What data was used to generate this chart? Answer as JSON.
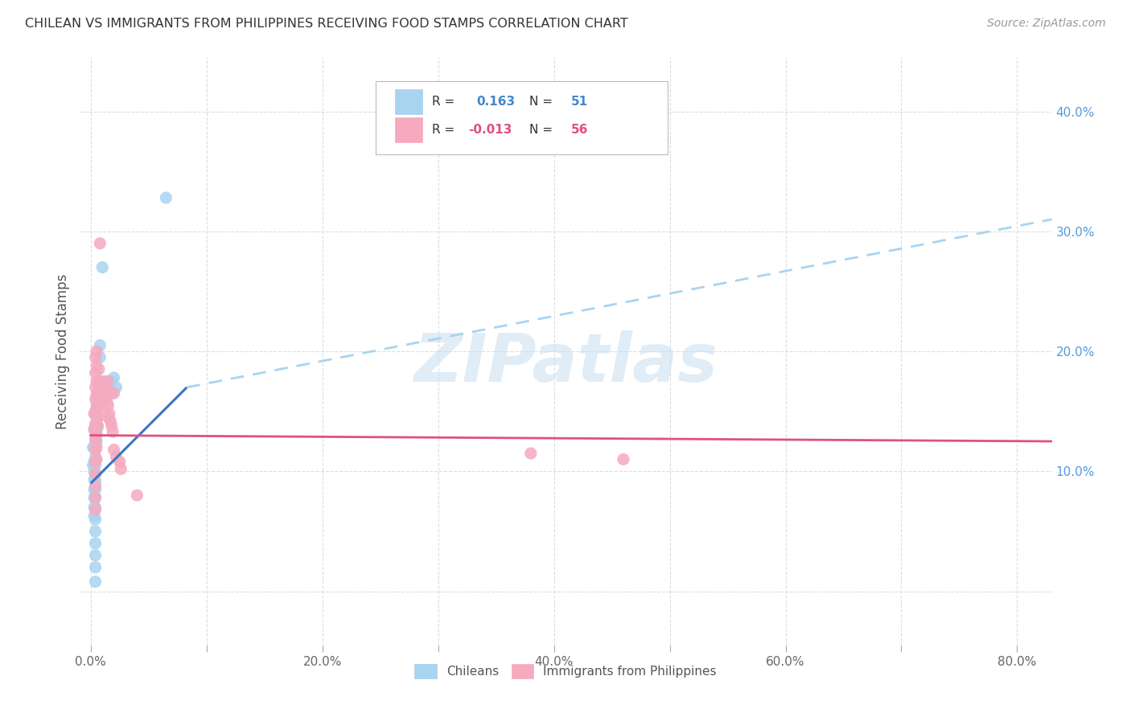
{
  "title": "CHILEAN VS IMMIGRANTS FROM PHILIPPINES RECEIVING FOOD STAMPS CORRELATION CHART",
  "source": "Source: ZipAtlas.com",
  "ylabel": "Receiving Food Stamps",
  "x_tick_positions": [
    0.0,
    0.1,
    0.2,
    0.3,
    0.4,
    0.5,
    0.6,
    0.7,
    0.8
  ],
  "x_tick_labels": [
    "0.0%",
    "",
    "20.0%",
    "",
    "40.0%",
    "",
    "60.0%",
    "",
    "80.0%"
  ],
  "y_tick_positions": [
    0.0,
    0.1,
    0.2,
    0.3,
    0.4
  ],
  "y_tick_labels": [
    "",
    "10.0%",
    "20.0%",
    "30.0%",
    "40.0%"
  ],
  "xlim": [
    -0.01,
    0.83
  ],
  "ylim": [
    -0.045,
    0.445
  ],
  "watermark": "ZIPatlas",
  "legend_label1": "Chileans",
  "legend_label2": "Immigrants from Philippines",
  "R1": "0.163",
  "N1": "51",
  "R2": "-0.013",
  "N2": "56",
  "color_blue": "#A8D4F0",
  "color_pink": "#F5AABF",
  "color_blue_line": "#3A75C4",
  "color_pink_line": "#E05080",
  "color_blue_dashed": "#A8D4F0",
  "background_color": "#FFFFFF",
  "grid_color": "#DDDDDD",
  "blue_scatter": [
    [
      0.002,
      0.12
    ],
    [
      0.002,
      0.105
    ],
    [
      0.003,
      0.135
    ],
    [
      0.003,
      0.12
    ],
    [
      0.003,
      0.108
    ],
    [
      0.003,
      0.1
    ],
    [
      0.003,
      0.093
    ],
    [
      0.003,
      0.085
    ],
    [
      0.003,
      0.078
    ],
    [
      0.003,
      0.07
    ],
    [
      0.003,
      0.063
    ],
    [
      0.004,
      0.15
    ],
    [
      0.004,
      0.14
    ],
    [
      0.004,
      0.13
    ],
    [
      0.004,
      0.125
    ],
    [
      0.004,
      0.118
    ],
    [
      0.004,
      0.112
    ],
    [
      0.004,
      0.105
    ],
    [
      0.004,
      0.098
    ],
    [
      0.004,
      0.092
    ],
    [
      0.004,
      0.085
    ],
    [
      0.004,
      0.078
    ],
    [
      0.004,
      0.07
    ],
    [
      0.004,
      0.06
    ],
    [
      0.004,
      0.05
    ],
    [
      0.004,
      0.04
    ],
    [
      0.004,
      0.03
    ],
    [
      0.004,
      0.02
    ],
    [
      0.004,
      0.008
    ],
    [
      0.005,
      0.155
    ],
    [
      0.005,
      0.147
    ],
    [
      0.005,
      0.14
    ],
    [
      0.005,
      0.133
    ],
    [
      0.005,
      0.125
    ],
    [
      0.006,
      0.165
    ],
    [
      0.006,
      0.155
    ],
    [
      0.006,
      0.145
    ],
    [
      0.006,
      0.137
    ],
    [
      0.007,
      0.175
    ],
    [
      0.007,
      0.165
    ],
    [
      0.008,
      0.205
    ],
    [
      0.008,
      0.195
    ],
    [
      0.01,
      0.27
    ],
    [
      0.013,
      0.175
    ],
    [
      0.015,
      0.165
    ],
    [
      0.016,
      0.168
    ],
    [
      0.018,
      0.175
    ],
    [
      0.018,
      0.165
    ],
    [
      0.02,
      0.178
    ],
    [
      0.022,
      0.17
    ],
    [
      0.065,
      0.328
    ]
  ],
  "pink_scatter": [
    [
      0.003,
      0.148
    ],
    [
      0.003,
      0.135
    ],
    [
      0.004,
      0.195
    ],
    [
      0.004,
      0.182
    ],
    [
      0.004,
      0.17
    ],
    [
      0.004,
      0.16
    ],
    [
      0.004,
      0.148
    ],
    [
      0.004,
      0.138
    ],
    [
      0.004,
      0.127
    ],
    [
      0.004,
      0.118
    ],
    [
      0.004,
      0.108
    ],
    [
      0.004,
      0.098
    ],
    [
      0.004,
      0.088
    ],
    [
      0.004,
      0.078
    ],
    [
      0.004,
      0.068
    ],
    [
      0.005,
      0.2
    ],
    [
      0.005,
      0.188
    ],
    [
      0.005,
      0.175
    ],
    [
      0.005,
      0.163
    ],
    [
      0.005,
      0.152
    ],
    [
      0.005,
      0.14
    ],
    [
      0.005,
      0.13
    ],
    [
      0.005,
      0.12
    ],
    [
      0.005,
      0.11
    ],
    [
      0.006,
      0.165
    ],
    [
      0.006,
      0.155
    ],
    [
      0.006,
      0.145
    ],
    [
      0.006,
      0.138
    ],
    [
      0.007,
      0.185
    ],
    [
      0.007,
      0.172
    ],
    [
      0.007,
      0.162
    ],
    [
      0.007,
      0.152
    ],
    [
      0.008,
      0.29
    ],
    [
      0.01,
      0.175
    ],
    [
      0.01,
      0.165
    ],
    [
      0.011,
      0.168
    ],
    [
      0.013,
      0.172
    ],
    [
      0.013,
      0.162
    ],
    [
      0.014,
      0.168
    ],
    [
      0.014,
      0.158
    ],
    [
      0.015,
      0.175
    ],
    [
      0.015,
      0.165
    ],
    [
      0.015,
      0.155
    ],
    [
      0.015,
      0.145
    ],
    [
      0.016,
      0.148
    ],
    [
      0.017,
      0.142
    ],
    [
      0.018,
      0.138
    ],
    [
      0.019,
      0.133
    ],
    [
      0.02,
      0.165
    ],
    [
      0.02,
      0.118
    ],
    [
      0.022,
      0.112
    ],
    [
      0.025,
      0.108
    ],
    [
      0.026,
      0.102
    ],
    [
      0.04,
      0.08
    ],
    [
      0.38,
      0.115
    ],
    [
      0.46,
      0.11
    ]
  ],
  "trendline_blue_x0": 0.0,
  "trendline_blue_y0": 0.09,
  "trendline_blue_x1": 0.083,
  "trendline_blue_y1": 0.17,
  "trendline_blue_dash_x0": 0.083,
  "trendline_blue_dash_y0": 0.17,
  "trendline_blue_dash_x1": 0.83,
  "trendline_blue_dash_y1": 0.31,
  "trendline_pink_x0": 0.0,
  "trendline_pink_y0": 0.13,
  "trendline_pink_x1": 0.83,
  "trendline_pink_y1": 0.125
}
